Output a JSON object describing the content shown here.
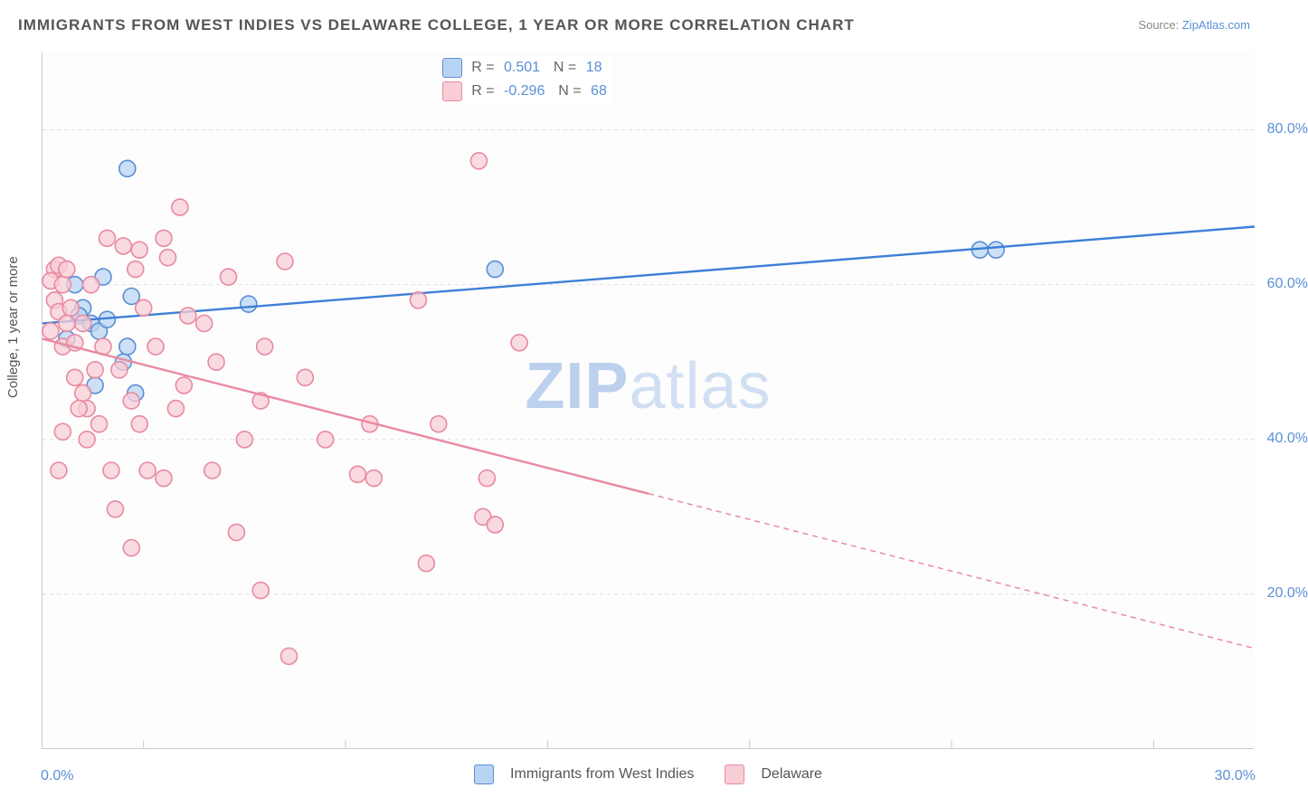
{
  "title": "IMMIGRANTS FROM WEST INDIES VS DELAWARE COLLEGE, 1 YEAR OR MORE CORRELATION CHART",
  "source_label": "Source:",
  "source_name": "ZipAtlas.com",
  "ylabel": "College, 1 year or more",
  "watermark_a": "ZIP",
  "watermark_b": "atlas",
  "chart": {
    "type": "scatter",
    "background_color": "#fdfdfd",
    "axis_color": "#cccccc",
    "grid_color": "#e0e0e0",
    "grid_dash": "4 4",
    "xlim": [
      0,
      30
    ],
    "ylim": [
      0,
      90
    ],
    "xticks": [
      0,
      30
    ],
    "xtick_labels": [
      "0.0%",
      "30.0%"
    ],
    "yticks": [
      20,
      40,
      60,
      80
    ],
    "ytick_labels": [
      "20.0%",
      "40.0%",
      "60.0%",
      "80.0%"
    ],
    "vgrid_at": [
      2.5,
      7.5,
      12.5,
      17.5,
      22.5,
      27.5
    ],
    "marker_radius": 9,
    "marker_stroke_width": 1.6,
    "line_stroke_width": 2.4,
    "series": [
      {
        "id": "westindies",
        "label": "Immigrants from West Indies",
        "R": "0.501",
        "N": "18",
        "fill_color": "#b9d4f3",
        "stroke_color": "#5b8fd6",
        "line_color": "#3d7fd6",
        "trend": {
          "x1": 0,
          "y1": 55,
          "x2": 30,
          "y2": 67.5,
          "solid_until_x": 30
        },
        "points": [
          [
            2.1,
            75
          ],
          [
            1.0,
            57
          ],
          [
            1.2,
            55
          ],
          [
            1.4,
            54
          ],
          [
            0.8,
            60
          ],
          [
            1.5,
            61
          ],
          [
            2.2,
            58.5
          ],
          [
            2.1,
            52
          ],
          [
            5.1,
            57.5
          ],
          [
            2.3,
            46
          ],
          [
            11.2,
            62
          ],
          [
            23.2,
            64.5
          ],
          [
            23.6,
            64.5
          ],
          [
            0.6,
            53
          ],
          [
            0.9,
            56
          ],
          [
            1.6,
            55.5
          ],
          [
            2.0,
            50
          ],
          [
            1.3,
            47
          ]
        ]
      },
      {
        "id": "delaware",
        "label": "Delaware",
        "R": "-0.296",
        "N": "68",
        "fill_color": "#f7cdd6",
        "stroke_color": "#e98aa0",
        "line_color": "#e98aa0",
        "trend": {
          "x1": 0,
          "y1": 53,
          "x2": 30,
          "y2": 13,
          "solid_until_x": 15
        },
        "points": [
          [
            0.3,
            62
          ],
          [
            0.4,
            62.5
          ],
          [
            0.2,
            60.5
          ],
          [
            0.5,
            60
          ],
          [
            0.6,
            62
          ],
          [
            0.8,
            48
          ],
          [
            1.0,
            55
          ],
          [
            1.2,
            60
          ],
          [
            1.3,
            49
          ],
          [
            1.5,
            52
          ],
          [
            1.0,
            46
          ],
          [
            1.1,
            44
          ],
          [
            0.5,
            41
          ],
          [
            1.4,
            42
          ],
          [
            0.4,
            36
          ],
          [
            1.9,
            49
          ],
          [
            3.0,
            66
          ],
          [
            3.4,
            70
          ],
          [
            3.1,
            63.5
          ],
          [
            2.5,
            57
          ],
          [
            2.8,
            52
          ],
          [
            3.5,
            47
          ],
          [
            2.6,
            36
          ],
          [
            3.0,
            35
          ],
          [
            4.6,
            61
          ],
          [
            4.0,
            55
          ],
          [
            5.5,
            52
          ],
          [
            5.4,
            45
          ],
          [
            4.2,
            36
          ],
          [
            4.8,
            28
          ],
          [
            1.7,
            36
          ],
          [
            1.8,
            31
          ],
          [
            2.2,
            26
          ],
          [
            6.0,
            63
          ],
          [
            7.8,
            35.5
          ],
          [
            8.2,
            35
          ],
          [
            8.1,
            42
          ],
          [
            9.3,
            58
          ],
          [
            9.5,
            24
          ],
          [
            9.8,
            42
          ],
          [
            10.8,
            76
          ],
          [
            11.8,
            52.5
          ],
          [
            11.0,
            35
          ],
          [
            10.9,
            30
          ],
          [
            11.2,
            29
          ],
          [
            5.4,
            20.5
          ],
          [
            6.1,
            12
          ],
          [
            0.3,
            58
          ],
          [
            0.4,
            56.5
          ],
          [
            0.6,
            55
          ],
          [
            0.2,
            54
          ],
          [
            0.5,
            52
          ],
          [
            0.7,
            57
          ],
          [
            0.8,
            52.5
          ],
          [
            1.6,
            66
          ],
          [
            2.0,
            65
          ],
          [
            2.4,
            64.5
          ],
          [
            2.3,
            62
          ],
          [
            2.2,
            45
          ],
          [
            2.4,
            42
          ],
          [
            0.9,
            44
          ],
          [
            1.1,
            40
          ],
          [
            3.3,
            44
          ],
          [
            3.6,
            56
          ],
          [
            4.3,
            50
          ],
          [
            5.0,
            40
          ],
          [
            6.5,
            48
          ],
          [
            7.0,
            40
          ]
        ]
      }
    ]
  }
}
